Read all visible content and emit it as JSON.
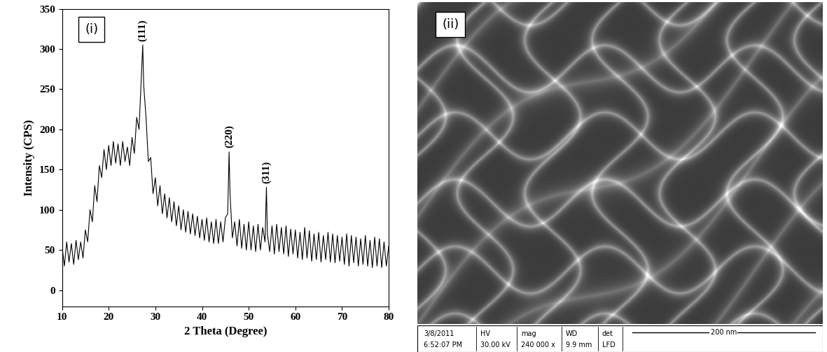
{
  "chart_data": {
    "type": "line",
    "panel_label": "(i)",
    "x_label": "2 Theta (Degree)",
    "y_label": "Intensity (CPS)",
    "x": [
      10,
      10.5,
      11,
      11.5,
      12,
      12.5,
      13,
      13.5,
      14,
      14.5,
      15,
      15.5,
      16,
      16.5,
      17,
      17.5,
      18,
      18.5,
      19,
      19.5,
      20,
      20.5,
      21,
      21.5,
      22,
      22.5,
      23,
      23.5,
      24,
      24.5,
      25,
      25.5,
      26,
      26.5,
      27,
      27.3,
      27.5,
      28,
      28.5,
      29,
      29.5,
      30,
      30.5,
      31,
      31.5,
      32,
      32.5,
      33,
      33.5,
      34,
      34.5,
      35,
      35.5,
      36,
      36.5,
      37,
      37.5,
      38,
      38.5,
      39,
      39.5,
      40,
      40.5,
      41,
      41.5,
      42,
      42.5,
      43,
      43.5,
      44,
      44.5,
      45,
      45.5,
      45.8,
      46,
      46.5,
      47,
      47.5,
      48,
      48.5,
      49,
      49.5,
      50,
      50.5,
      51,
      51.5,
      52,
      52.5,
      53,
      53.5,
      53.8,
      54,
      54.5,
      55,
      55.5,
      56,
      56.5,
      57,
      57.5,
      58,
      58.5,
      59,
      59.5,
      60,
      60.5,
      61,
      61.5,
      62,
      62.5,
      63,
      63.5,
      64,
      64.5,
      65,
      65.5,
      66,
      66.5,
      67,
      67.5,
      68,
      68.5,
      69,
      69.5,
      70,
      70.5,
      71,
      71.5,
      72,
      72.5,
      73,
      73.5,
      74,
      74.5,
      75,
      75.5,
      76,
      76.5,
      77,
      77.5,
      78,
      78.5,
      79,
      79.5,
      80
    ],
    "values": [
      55,
      30,
      60,
      35,
      58,
      32,
      62,
      38,
      60,
      40,
      75,
      60,
      100,
      85,
      130,
      110,
      155,
      140,
      175,
      150,
      180,
      155,
      185,
      158,
      182,
      155,
      185,
      160,
      178,
      155,
      190,
      170,
      215,
      200,
      265,
      305,
      255,
      215,
      160,
      165,
      120,
      140,
      105,
      130,
      95,
      120,
      90,
      115,
      85,
      110,
      80,
      105,
      75,
      100,
      72,
      98,
      70,
      95,
      68,
      92,
      65,
      88,
      62,
      90,
      60,
      85,
      58,
      88,
      58,
      85,
      60,
      90,
      95,
      172,
      120,
      65,
      85,
      55,
      88,
      52,
      82,
      50,
      85,
      50,
      80,
      48,
      82,
      50,
      78,
      60,
      128,
      70,
      48,
      80,
      45,
      82,
      48,
      78,
      45,
      80,
      42,
      76,
      45,
      75,
      40,
      72,
      38,
      78,
      40,
      74,
      36,
      70,
      38,
      72,
      35,
      68,
      38,
      72,
      35,
      70,
      34,
      68,
      36,
      66,
      32,
      70,
      30,
      68,
      34,
      66,
      30,
      64,
      32,
      68,
      30,
      62,
      28,
      66,
      30,
      64,
      28,
      60,
      30,
      55
    ],
    "color": "#000000",
    "xlim": [
      10,
      80
    ],
    "xticks": [
      10,
      20,
      30,
      40,
      50,
      60,
      70,
      80
    ],
    "ylim": [
      -20,
      350
    ],
    "yticks": [
      0,
      50,
      100,
      150,
      200,
      250,
      300,
      350
    ],
    "grid": false,
    "annotations": [
      {
        "text": "(111)",
        "x": 27.3,
        "y": 305
      },
      {
        "text": "(220)",
        "x": 45.8,
        "y": 172
      },
      {
        "text": "(311)",
        "x": 53.8,
        "y": 128
      }
    ]
  },
  "image": {
    "type": "micrograph",
    "panel_label": "(ii)",
    "info_bar": {
      "date": "3/8/2011",
      "time": "6:52:07 PM",
      "fields": [
        {
          "name": "HV",
          "value": "30.00 kV"
        },
        {
          "name": "mag",
          "value": "240 000 x"
        },
        {
          "name": "WD",
          "value": "9.9 mm"
        },
        {
          "name": "det",
          "value": "LFD"
        }
      ],
      "scale_bar": "200 nm"
    }
  }
}
